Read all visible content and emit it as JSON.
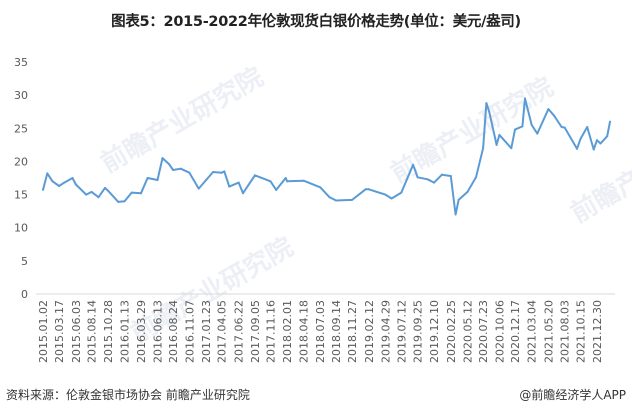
{
  "title": "图表5：2015-2022年伦敦现货白银价格走势(单位：美元/盎司)",
  "source": "资料来源：伦敦金银市场协会 前瞻产业研究院",
  "credit": "@前瞻经济学人APP",
  "watermark": "前瞻产业研究院",
  "colors": {
    "line": "#5b9bd5",
    "axis": "#d9d9d9",
    "text": "#595959"
  },
  "chart_data": {
    "type": "line",
    "title": "图表5：2015-2022年伦敦现货白银价格走势(单位：美元/盎司)",
    "xlabel": "",
    "ylabel": "",
    "ylim": [
      0,
      35
    ],
    "yticks": [
      0,
      5,
      10,
      15,
      20,
      25,
      30,
      35
    ],
    "grid": false,
    "legend": "none",
    "xticks": [
      "2015.01.02",
      "2015.03.17",
      "2015.06.03",
      "2015.08.14",
      "2015.10.28",
      "2016.01.13",
      "2016.03.29",
      "2016.06.13",
      "2016.08.24",
      "2016.11.07",
      "2017.01.23",
      "2017.04.05",
      "2017.06.22",
      "2017.09.05",
      "2017.11.16",
      "2018.02.01",
      "2018.04.18",
      "2018.07.03",
      "2018.09.14",
      "2018.11.27",
      "2019.02.12",
      "2019.04.29",
      "2019.07.12",
      "2019.09.25",
      "2019.12.10",
      "2020.02.25",
      "2020.05.12",
      "2020.07.23",
      "2020.10.06",
      "2020.12.17",
      "2021.03.04",
      "2021.05.20",
      "2021.08.03",
      "2021.10.15",
      "2021.12.30"
    ],
    "series": [
      {
        "x": [
          "2015-01-02",
          "2015-01-22",
          "2015-02-15",
          "2015-03-17",
          "2015-04-10",
          "2015-05-18",
          "2015-06-03",
          "2015-07-20",
          "2015-08-14",
          "2015-09-15",
          "2015-10-15",
          "2015-10-28",
          "2015-12-15",
          "2016-01-13",
          "2016-02-15",
          "2016-03-29",
          "2016-04-28",
          "2016-06-13",
          "2016-07-06",
          "2016-08-05",
          "2016-08-24",
          "2016-09-28",
          "2016-11-07",
          "2016-12-20",
          "2017-01-23",
          "2017-02-24",
          "2017-04-05",
          "2017-04-17",
          "2017-05-10",
          "2017-06-22",
          "2017-07-12",
          "2017-09-05",
          "2017-11-16",
          "2017-12-12",
          "2018-01-25",
          "2018-02-01",
          "2018-04-18",
          "2018-07-03",
          "2018-08-15",
          "2018-09-14",
          "2018-11-27",
          "2019-01-28",
          "2019-02-12",
          "2019-04-29",
          "2019-05-28",
          "2019-07-12",
          "2019-09-04",
          "2019-09-25",
          "2019-11-10",
          "2019-12-10",
          "2020-01-15",
          "2020-02-25",
          "2020-03-18",
          "2020-04-01",
          "2020-05-12",
          "2020-06-20",
          "2020-07-23",
          "2020-08-07",
          "2020-08-20",
          "2020-09-23",
          "2020-10-06",
          "2020-11-30",
          "2020-12-17",
          "2021-01-20",
          "2021-02-01",
          "2021-03-04",
          "2021-03-30",
          "2021-05-20",
          "2021-06-15",
          "2021-07-20",
          "2021-08-03",
          "2021-09-29",
          "2021-10-15",
          "2021-11-15",
          "2021-12-15",
          "2021-12-30",
          "2022-01-15",
          "2022-02-15",
          "2022-02-28"
        ],
        "values": [
          15.7,
          18.2,
          17.0,
          16.3,
          16.8,
          17.5,
          16.5,
          15.0,
          15.4,
          14.6,
          16.0,
          15.6,
          13.9,
          14.0,
          15.3,
          15.2,
          17.5,
          17.2,
          20.5,
          19.6,
          18.7,
          18.9,
          18.3,
          15.9,
          17.2,
          18.4,
          18.3,
          18.5,
          16.2,
          16.8,
          15.2,
          17.9,
          17.0,
          15.7,
          17.5,
          17.0,
          17.1,
          16.1,
          14.6,
          14.1,
          14.2,
          15.8,
          15.8,
          15.0,
          14.4,
          15.3,
          19.5,
          17.6,
          17.3,
          16.8,
          18.0,
          17.8,
          12.0,
          14.2,
          15.4,
          17.6,
          22.0,
          28.8,
          27.5,
          22.5,
          24.0,
          22.0,
          24.8,
          25.3,
          29.5,
          25.5,
          24.2,
          27.9,
          26.9,
          25.2,
          25.1,
          21.9,
          23.4,
          25.2,
          21.8,
          23.2,
          22.7,
          23.8,
          26.0
        ]
      }
    ]
  }
}
